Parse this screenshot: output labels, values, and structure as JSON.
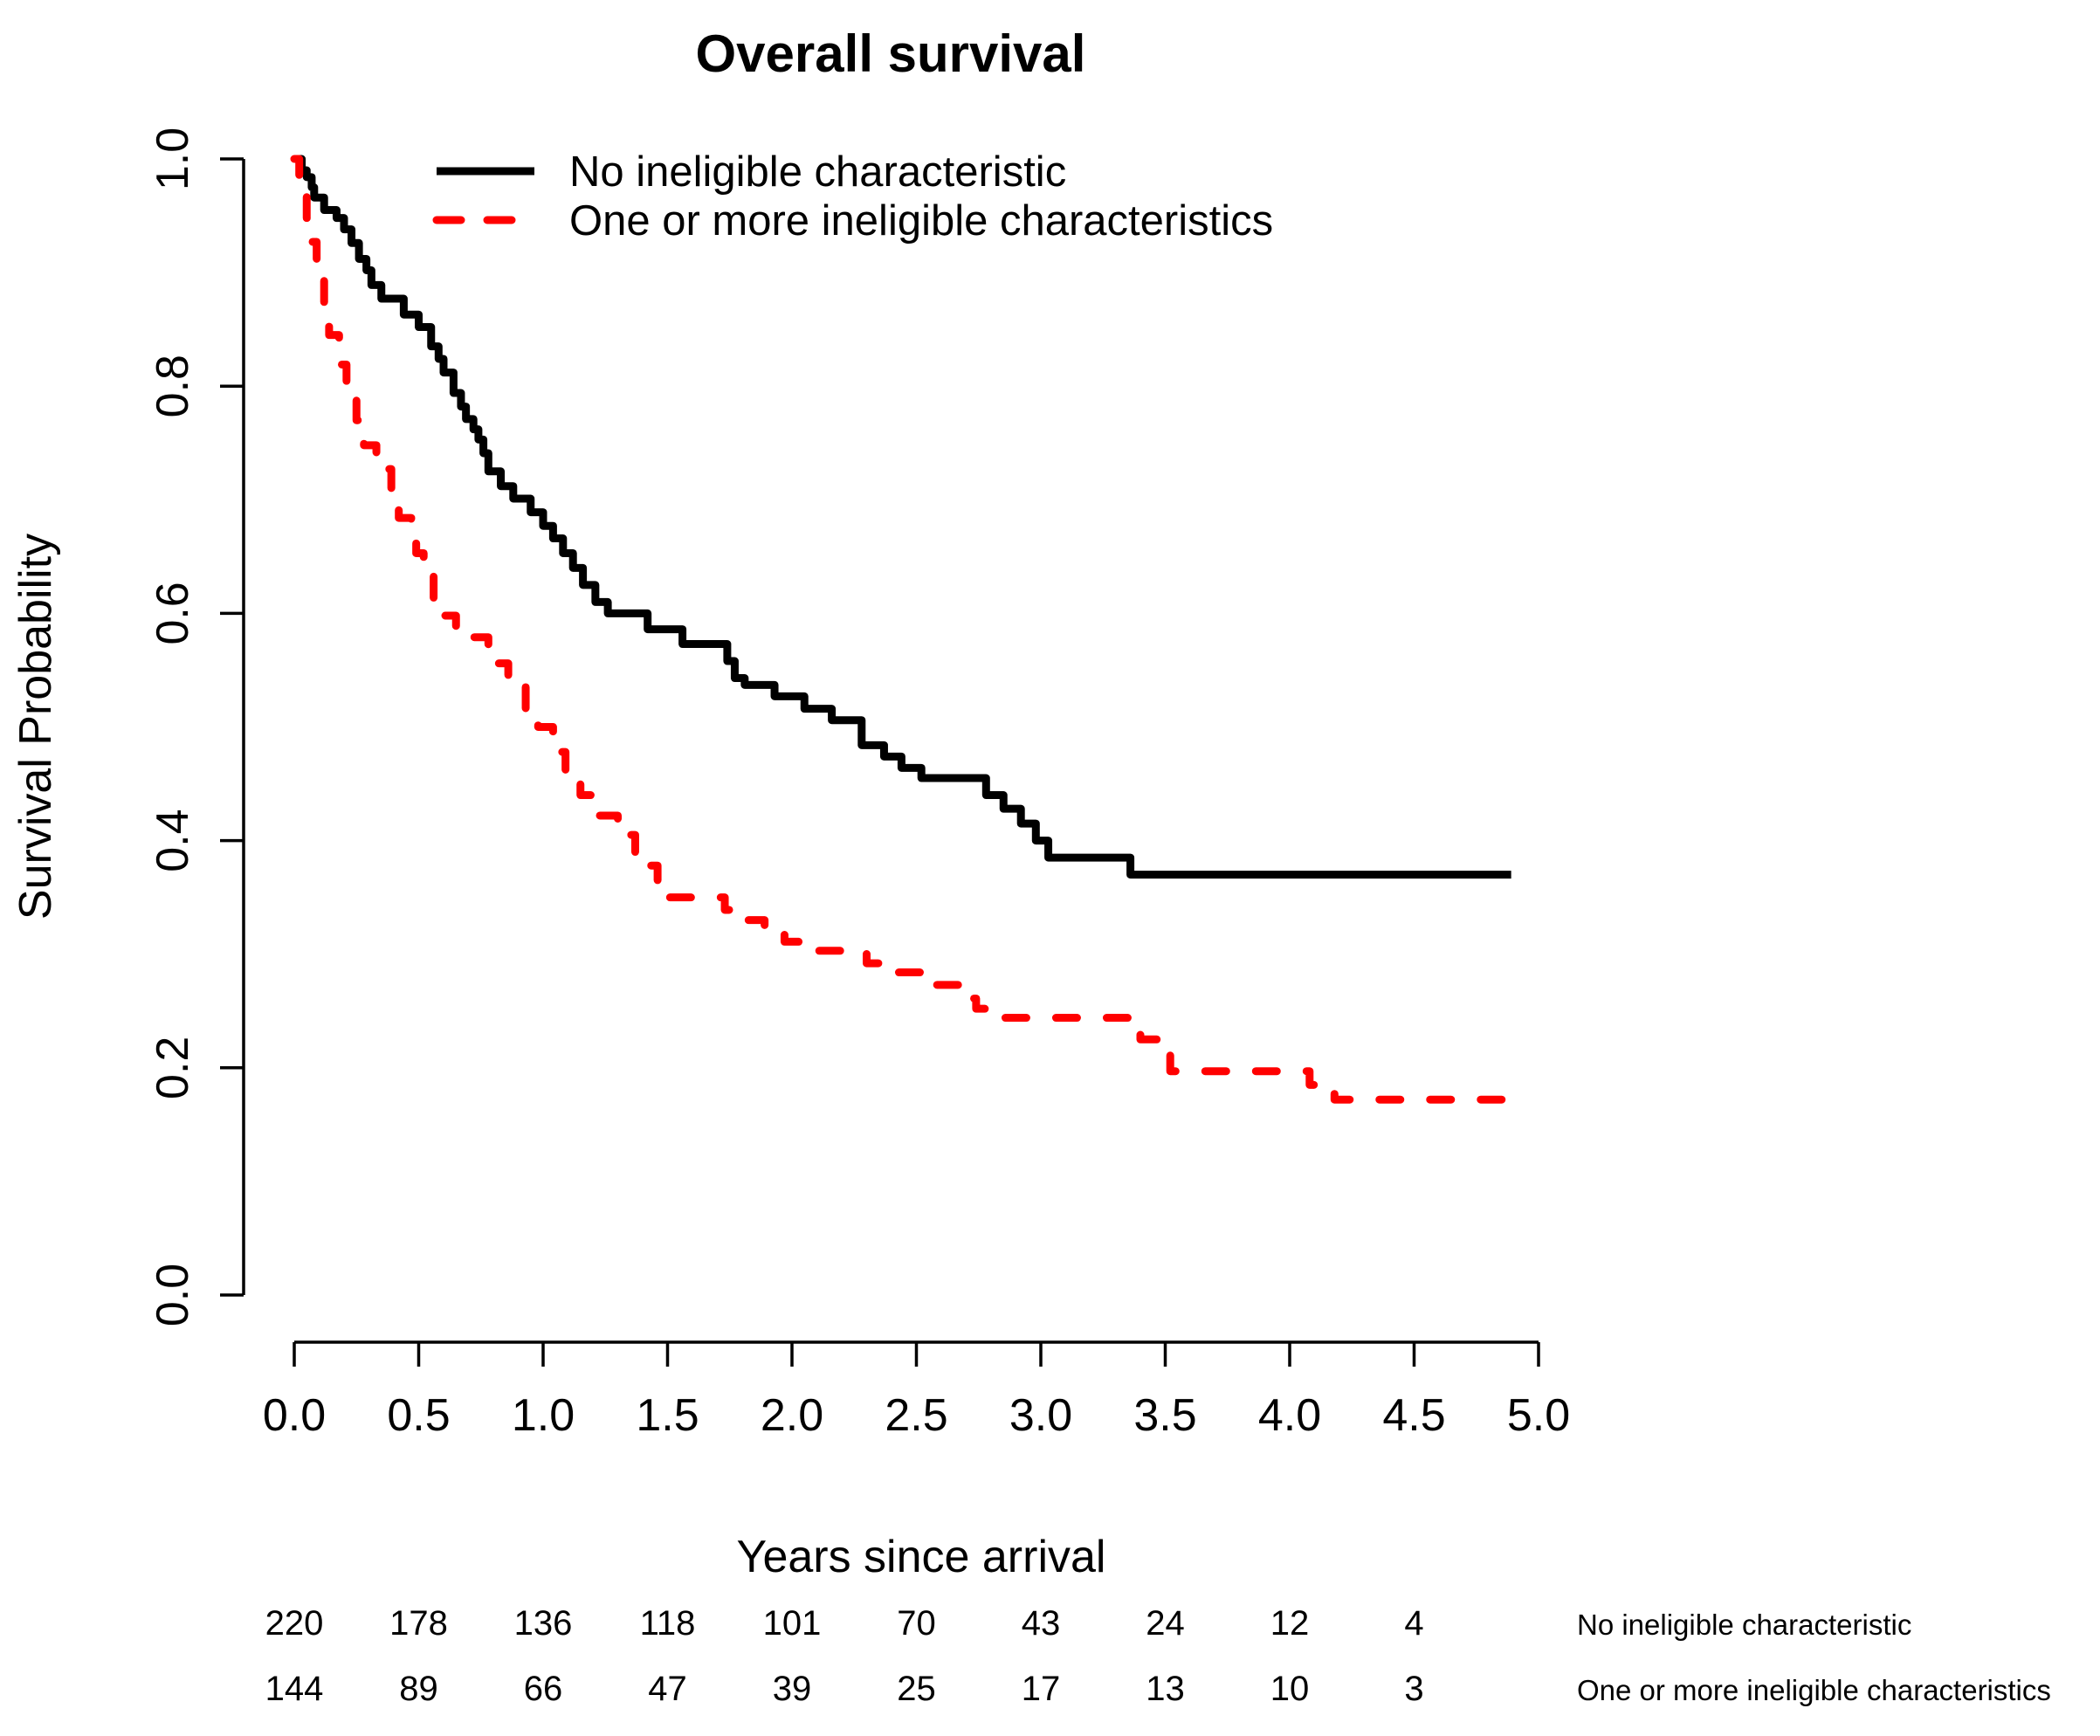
{
  "chart_data": {
    "type": "line",
    "subtype": "kaplan-meier-step",
    "title": "Overall survival",
    "xlabel": "Years since arrival",
    "ylabel": "Survival Probability",
    "xlim": [
      0,
      5
    ],
    "ylim": [
      0,
      1
    ],
    "grid": false,
    "legend_position": "top-left-inside",
    "x_ticks": {
      "values": [
        0,
        0.5,
        1,
        1.5,
        2,
        2.5,
        3,
        3.5,
        4,
        4.5,
        5
      ],
      "labels": [
        "0.0",
        "0.5",
        "1.0",
        "1.5",
        "2.0",
        "2.5",
        "3.0",
        "3.5",
        "4.0",
        "4.5",
        "5.0"
      ]
    },
    "y_ticks": {
      "values": [
        0,
        0.2,
        0.4,
        0.6,
        0.8,
        1.0
      ],
      "labels": [
        "0.0",
        "0.2",
        "0.4",
        "0.6",
        "0.8",
        "1.0"
      ]
    },
    "series": [
      {
        "name": "No ineligible characteristic",
        "color": "#000000",
        "line_style": "solid",
        "line_width": 9,
        "end_time": 4.89,
        "steps": [
          [
            0,
            1.0
          ],
          [
            0.03,
            0.99
          ],
          [
            0.05,
            0.984
          ],
          [
            0.07,
            0.975
          ],
          [
            0.08,
            0.966
          ],
          [
            0.12,
            0.955
          ],
          [
            0.17,
            0.948
          ],
          [
            0.2,
            0.938
          ],
          [
            0.23,
            0.926
          ],
          [
            0.26,
            0.912
          ],
          [
            0.29,
            0.902
          ],
          [
            0.31,
            0.889
          ],
          [
            0.35,
            0.877
          ],
          [
            0.44,
            0.863
          ],
          [
            0.5,
            0.852
          ],
          [
            0.55,
            0.835
          ],
          [
            0.58,
            0.824
          ],
          [
            0.6,
            0.812
          ],
          [
            0.64,
            0.794
          ],
          [
            0.67,
            0.782
          ],
          [
            0.69,
            0.771
          ],
          [
            0.72,
            0.762
          ],
          [
            0.74,
            0.753
          ],
          [
            0.76,
            0.741
          ],
          [
            0.78,
            0.725
          ],
          [
            0.83,
            0.712
          ],
          [
            0.88,
            0.701
          ],
          [
            0.95,
            0.689
          ],
          [
            1.0,
            0.677
          ],
          [
            1.04,
            0.666
          ],
          [
            1.08,
            0.653
          ],
          [
            1.12,
            0.64
          ],
          [
            1.16,
            0.625
          ],
          [
            1.21,
            0.61
          ],
          [
            1.26,
            0.6
          ],
          [
            1.42,
            0.586
          ],
          [
            1.56,
            0.573
          ],
          [
            1.74,
            0.558
          ],
          [
            1.77,
            0.543
          ],
          [
            1.81,
            0.537
          ],
          [
            1.93,
            0.527
          ],
          [
            2.05,
            0.516
          ],
          [
            2.16,
            0.506
          ],
          [
            2.28,
            0.484
          ],
          [
            2.37,
            0.474
          ],
          [
            2.44,
            0.464
          ],
          [
            2.52,
            0.455
          ],
          [
            2.78,
            0.44
          ],
          [
            2.85,
            0.428
          ],
          [
            2.92,
            0.415
          ],
          [
            2.98,
            0.4
          ],
          [
            3.03,
            0.385
          ],
          [
            3.36,
            0.37
          ]
        ]
      },
      {
        "name": "One or more ineligible characteristics",
        "color": "#FF0000",
        "line_style": "dashed",
        "line_width": 9,
        "end_time": 4.92,
        "steps": [
          [
            0,
            1.0
          ],
          [
            0.02,
            0.97
          ],
          [
            0.05,
            0.948
          ],
          [
            0.07,
            0.927
          ],
          [
            0.09,
            0.9
          ],
          [
            0.12,
            0.871
          ],
          [
            0.14,
            0.845
          ],
          [
            0.18,
            0.819
          ],
          [
            0.21,
            0.793
          ],
          [
            0.25,
            0.77
          ],
          [
            0.28,
            0.748
          ],
          [
            0.33,
            0.727
          ],
          [
            0.39,
            0.705
          ],
          [
            0.42,
            0.684
          ],
          [
            0.47,
            0.665
          ],
          [
            0.49,
            0.653
          ],
          [
            0.52,
            0.636
          ],
          [
            0.56,
            0.612
          ],
          [
            0.59,
            0.598
          ],
          [
            0.65,
            0.588
          ],
          [
            0.7,
            0.579
          ],
          [
            0.78,
            0.556
          ],
          [
            0.86,
            0.535
          ],
          [
            0.93,
            0.515
          ],
          [
            0.98,
            0.5
          ],
          [
            1.04,
            0.478
          ],
          [
            1.09,
            0.458
          ],
          [
            1.15,
            0.44
          ],
          [
            1.22,
            0.422
          ],
          [
            1.3,
            0.405
          ],
          [
            1.37,
            0.39
          ],
          [
            1.41,
            0.378
          ],
          [
            1.46,
            0.355
          ],
          [
            1.5,
            0.35
          ],
          [
            1.73,
            0.339
          ],
          [
            1.82,
            0.33
          ],
          [
            1.89,
            0.32
          ],
          [
            1.97,
            0.311
          ],
          [
            2.1,
            0.303
          ],
          [
            2.3,
            0.292
          ],
          [
            2.38,
            0.284
          ],
          [
            2.54,
            0.273
          ],
          [
            2.68,
            0.261
          ],
          [
            2.74,
            0.252
          ],
          [
            2.8,
            0.244
          ],
          [
            3.4,
            0.225
          ],
          [
            3.52,
            0.197
          ],
          [
            4.08,
            0.185
          ],
          [
            4.18,
            0.172
          ]
        ]
      }
    ],
    "risk_table": {
      "times": [
        0,
        0.5,
        1,
        1.5,
        2,
        2.5,
        3,
        3.5,
        4,
        4.5
      ],
      "rows": [
        {
          "label": "No ineligible characteristic",
          "counts": [
            "220",
            "178",
            "136",
            "118",
            "101",
            "70",
            "43",
            "24",
            "12",
            "4"
          ]
        },
        {
          "label": "One or more ineligible characteristics",
          "counts": [
            "144",
            "89",
            "66",
            "47",
            "39",
            "25",
            "17",
            "13",
            "10",
            "3"
          ]
        }
      ]
    }
  }
}
